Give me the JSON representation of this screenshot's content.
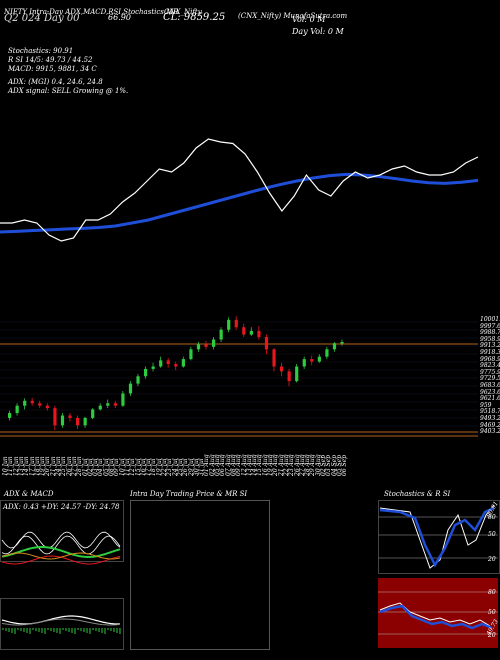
{
  "header": {
    "exchange_symbol": "(CNX_Nifty)",
    "tabs": [
      "NIFTY Intra-Day ADX,MACD,RSI,Stochastics,MR",
      "CNX_Nifty"
    ],
    "line1_left": "Q2 024 Day 00",
    "adx_value": "66.90",
    "close_label": "CL: 9859.25",
    "title": "(CNX_Nifty) MunafaSutra.com",
    "vol_label": "Vol: 0  M",
    "day_vol_label": "Day Vol: 0  M"
  },
  "indicators": {
    "stochastics": "Stochastics: 90.91",
    "rsi": "R          SI 14/5: 49.73 / 44.52",
    "macd": "MACD: 9915, 9881, 34  C",
    "adx": "ADX:                          (MGI) 0.4, 24.6, 24.8",
    "signal": "ADX  signal: SELL Growing @ 1%."
  },
  "colors": {
    "background": "#000000",
    "price_line": "#ffffff",
    "ma_line": "#1f4fd8",
    "candle_up": "#2ecc40",
    "candle_down": "#e8161d",
    "level_line": "#b5651d",
    "rsi_panel": "#8b0000"
  },
  "price_levels": [
    "10001.5",
    "9997.67",
    "9988.75",
    "9958.97",
    "9913.27",
    "9918.36",
    "9968.97",
    "9823.44",
    "9775.99",
    "9729.53",
    "9683.62",
    "9623.62",
    "9621.62",
    "959",
    "9518.73",
    "9493.23",
    "9469.23",
    "9403.25"
  ],
  "dates": [
    "10 Jun",
    "11 Jun",
    "12 Jun",
    "13 Jun",
    "14 Jun",
    "17 Jun",
    "18 Jun",
    "19 Jun",
    "20 Jun",
    "21 Jun",
    "24 Jun",
    "25 Jun",
    "26 Jun",
    "27 Jun",
    "28 Jun",
    "01 Jul",
    "02 Jul",
    "03 Jul",
    "04 Jul",
    "05 Jul",
    "08 Jul",
    "09 Jul",
    "10 Jul",
    "11 Jul",
    "12 Jul",
    "15 Jul",
    "16 Jul",
    "17 Jul",
    "18 Jul",
    "19 Jul",
    "22 Jul",
    "23 Jul",
    "24 Jul",
    "25 Jul",
    "26 Jul",
    "29 Jul",
    "30 Jul",
    "31 Jul",
    "01 Aug",
    "02 Aug",
    "05 Aug",
    "06 Aug",
    "07 Aug",
    "08 Aug",
    "09 Aug",
    "12 Aug",
    "13 Aug",
    "14 Aug",
    "15 Aug",
    "16 Aug",
    "19 Aug",
    "20 Aug",
    "21 Aug",
    "22 Aug",
    "23 Aug",
    "26 Aug",
    "27 Aug",
    "28 Aug",
    "29 Aug",
    "30 Aug",
    "02 Sep",
    "03 Sep",
    "04 Sep",
    "05 Sep",
    "06 Sep"
  ],
  "panels": {
    "adx_macd_title": "ADX  & MACD",
    "adx_values": "ADX: 0.43  +DY: 24.57  -DY: 24.78",
    "intraday_title": "Intra  Day Trading Price  & MR                    SI",
    "stoch_title": "Stochastics & R                   SI",
    "stoch_levels": [
      "80",
      "50",
      "20"
    ],
    "rsi_levels": [
      "80",
      "50",
      "20"
    ],
    "stoch_tag": "90.91",
    "rsi_tag": "49.73"
  },
  "chart_data": {
    "type": "candlestick",
    "title": "(CNX_Nifty) MunafaSutra.com",
    "candles": [
      {
        "o": 9590,
        "c": 9610,
        "h": 9620,
        "l": 9580
      },
      {
        "o": 9610,
        "c": 9640,
        "h": 9650,
        "l": 9600
      },
      {
        "o": 9640,
        "c": 9660,
        "h": 9670,
        "l": 9625
      },
      {
        "o": 9660,
        "c": 9650,
        "h": 9672,
        "l": 9640
      },
      {
        "o": 9650,
        "c": 9640,
        "h": 9660,
        "l": 9630
      },
      {
        "o": 9640,
        "c": 9630,
        "h": 9650,
        "l": 9620
      },
      {
        "o": 9630,
        "c": 9560,
        "h": 9640,
        "l": 9540
      },
      {
        "o": 9560,
        "c": 9600,
        "h": 9610,
        "l": 9550
      },
      {
        "o": 9600,
        "c": 9590,
        "h": 9610,
        "l": 9575
      },
      {
        "o": 9590,
        "c": 9560,
        "h": 9600,
        "l": 9545
      },
      {
        "o": 9560,
        "c": 9590,
        "h": 9595,
        "l": 9550
      },
      {
        "o": 9590,
        "c": 9625,
        "h": 9630,
        "l": 9585
      },
      {
        "o": 9625,
        "c": 9640,
        "h": 9650,
        "l": 9620
      },
      {
        "o": 9640,
        "c": 9650,
        "h": 9665,
        "l": 9630
      },
      {
        "o": 9650,
        "c": 9640,
        "h": 9660,
        "l": 9630
      },
      {
        "o": 9640,
        "c": 9690,
        "h": 9700,
        "l": 9635
      },
      {
        "o": 9690,
        "c": 9730,
        "h": 9740,
        "l": 9680
      },
      {
        "o": 9730,
        "c": 9760,
        "h": 9770,
        "l": 9720
      },
      {
        "o": 9760,
        "c": 9790,
        "h": 9800,
        "l": 9750
      },
      {
        "o": 9790,
        "c": 9800,
        "h": 9815,
        "l": 9780
      },
      {
        "o": 9800,
        "c": 9825,
        "h": 9840,
        "l": 9795
      },
      {
        "o": 9825,
        "c": 9810,
        "h": 9835,
        "l": 9795
      },
      {
        "o": 9810,
        "c": 9800,
        "h": 9820,
        "l": 9785
      },
      {
        "o": 9800,
        "c": 9830,
        "h": 9840,
        "l": 9795
      },
      {
        "o": 9830,
        "c": 9870,
        "h": 9880,
        "l": 9825
      },
      {
        "o": 9870,
        "c": 9890,
        "h": 9900,
        "l": 9860
      },
      {
        "o": 9890,
        "c": 9880,
        "h": 9905,
        "l": 9870
      },
      {
        "o": 9880,
        "c": 9910,
        "h": 9920,
        "l": 9870
      },
      {
        "o": 9910,
        "c": 9950,
        "h": 9960,
        "l": 9900
      },
      {
        "o": 9950,
        "c": 9990,
        "h": 10000,
        "l": 9940
      },
      {
        "o": 9990,
        "c": 9960,
        "h": 10005,
        "l": 9950
      },
      {
        "o": 9960,
        "c": 9930,
        "h": 9975,
        "l": 9920
      },
      {
        "o": 9930,
        "c": 9945,
        "h": 9960,
        "l": 9925
      },
      {
        "o": 9945,
        "c": 9920,
        "h": 9965,
        "l": 9910
      },
      {
        "o": 9920,
        "c": 9870,
        "h": 9930,
        "l": 9850
      },
      {
        "o": 9870,
        "c": 9800,
        "h": 9875,
        "l": 9780
      },
      {
        "o": 9800,
        "c": 9780,
        "h": 9815,
        "l": 9760
      },
      {
        "o": 9780,
        "c": 9740,
        "h": 9790,
        "l": 9720
      },
      {
        "o": 9740,
        "c": 9800,
        "h": 9810,
        "l": 9735
      },
      {
        "o": 9800,
        "c": 9830,
        "h": 9840,
        "l": 9790
      },
      {
        "o": 9830,
        "c": 9820,
        "h": 9845,
        "l": 9805
      },
      {
        "o": 9820,
        "c": 9840,
        "h": 9850,
        "l": 9815
      },
      {
        "o": 9840,
        "c": 9870,
        "h": 9880,
        "l": 9830
      },
      {
        "o": 9870,
        "c": 9895,
        "h": 9900,
        "l": 9860
      },
      {
        "o": 9895,
        "c": 9900,
        "h": 9910,
        "l": 9885
      }
    ],
    "ma_line": [
      9660,
      9662,
      9665,
      9667,
      9670,
      9672,
      9675,
      9680,
      9690,
      9700,
      9715,
      9730,
      9745,
      9760,
      9775,
      9790,
      9805,
      9818,
      9830,
      9840,
      9848,
      9852,
      9850,
      9845,
      9838,
      9830,
      9824,
      9822,
      9826,
      9832
    ],
    "price_line": [
      9690,
      9690,
      9700,
      9690,
      9650,
      9630,
      9640,
      9700,
      9700,
      9720,
      9760,
      9790,
      9830,
      9870,
      9860,
      9890,
      9940,
      9970,
      9960,
      9955,
      9920,
      9860,
      9790,
      9730,
      9780,
      9850,
      9800,
      9780,
      9830,
      9860,
      9840,
      9850,
      9870,
      9880,
      9860,
      9850,
      9850,
      9860,
      9890,
      9910
    ]
  }
}
